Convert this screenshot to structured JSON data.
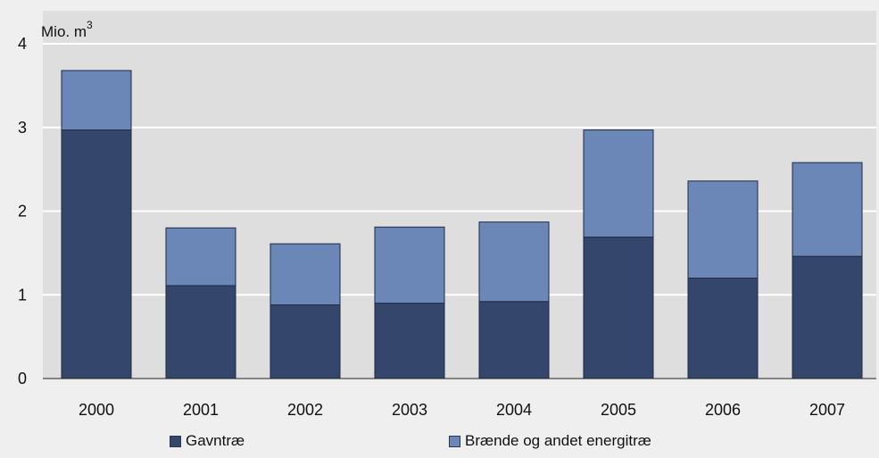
{
  "chart_data": {
    "type": "bar",
    "stacked": true,
    "categories": [
      "2000",
      "2001",
      "2002",
      "2003",
      "2004",
      "2005",
      "2006",
      "2007"
    ],
    "series": [
      {
        "name": "Gavntræ",
        "color": "#34466b",
        "values": [
          2.97,
          1.11,
          0.88,
          0.9,
          0.92,
          1.69,
          1.2,
          1.46
        ]
      },
      {
        "name": "Brænde og andet energitræ",
        "color": "#6b87b8",
        "values": [
          0.71,
          0.69,
          0.73,
          0.91,
          0.95,
          1.28,
          1.16,
          1.12
        ]
      }
    ],
    "unit_label": "Mio. m",
    "unit_superscript": "3",
    "ylim": [
      0,
      4
    ],
    "yticks": [
      0,
      1,
      2,
      3,
      4
    ],
    "grid": true,
    "legend_position": "bottom",
    "colors": {
      "plot_background": "#dedede",
      "page_background": "#efefef",
      "gridline": "#ffffff"
    }
  }
}
